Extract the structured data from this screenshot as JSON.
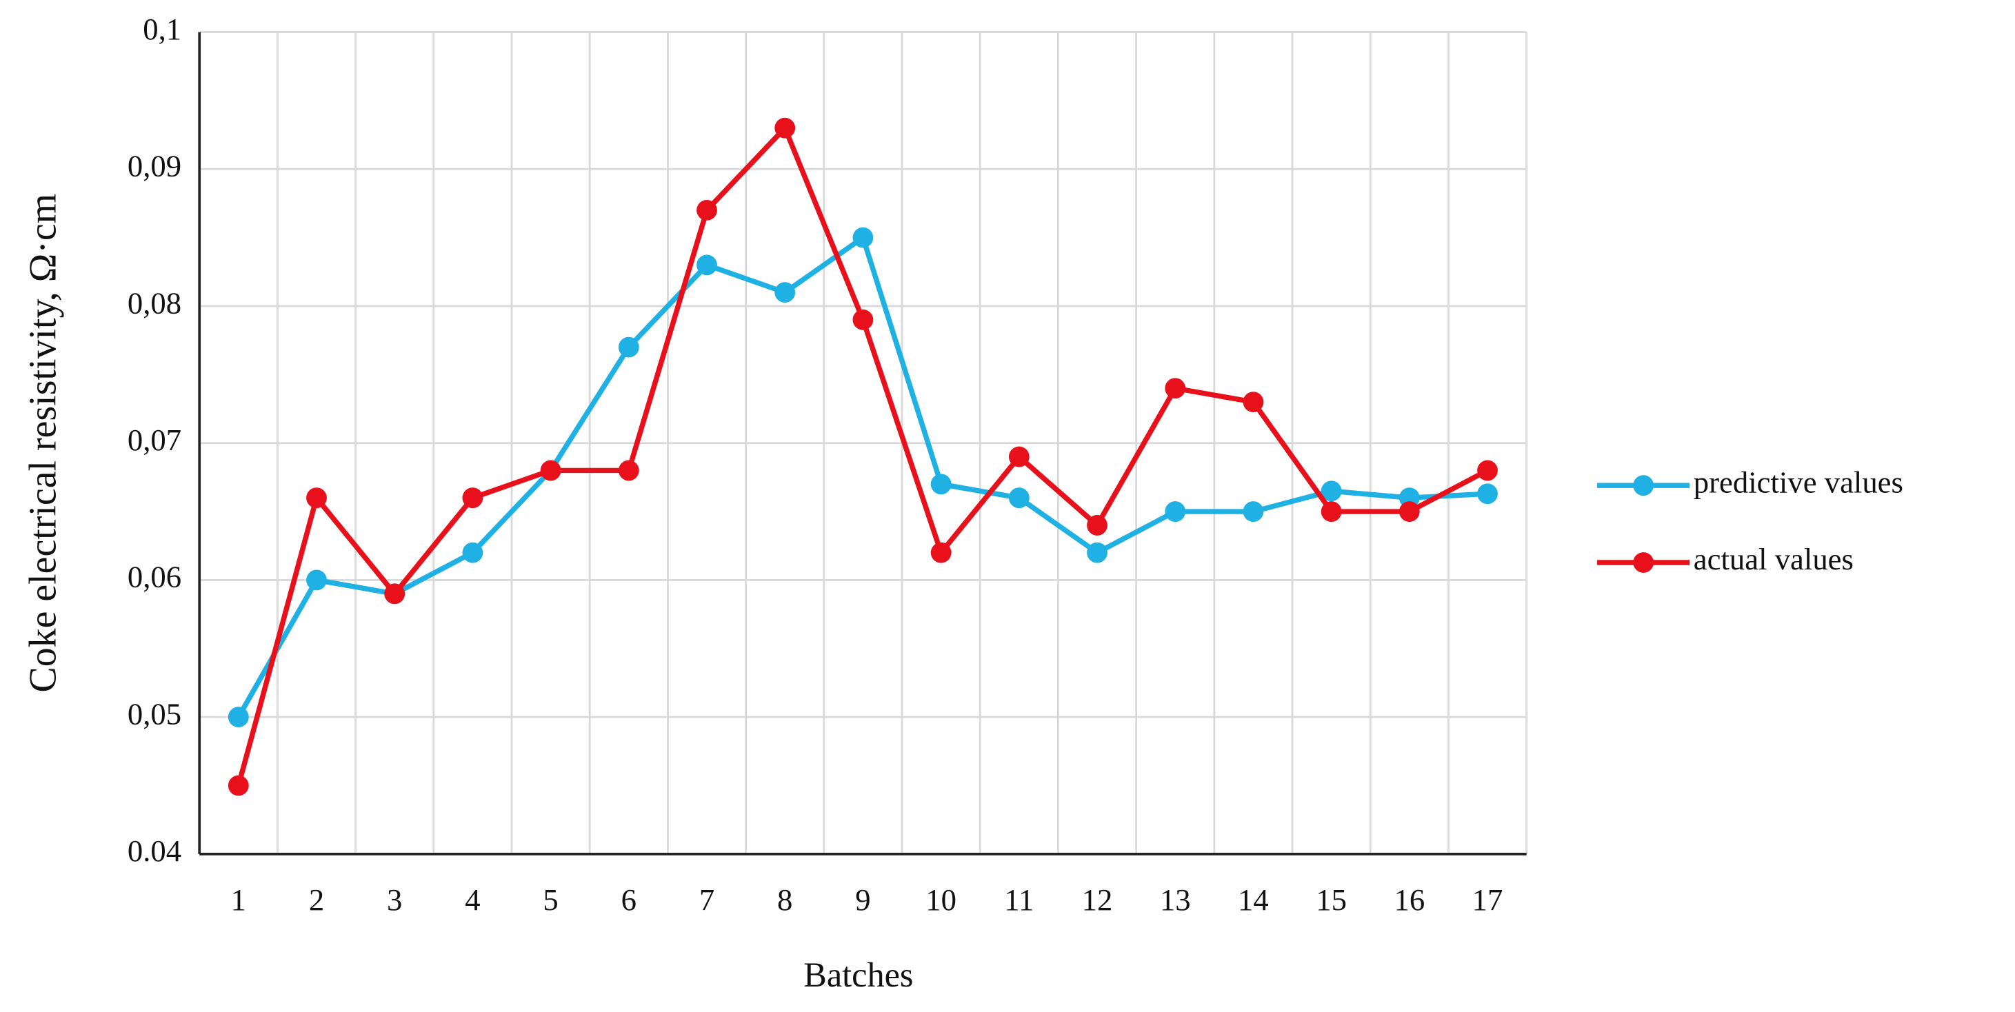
{
  "chart_data": {
    "type": "line",
    "x_label": "Batches",
    "y_label": "Coke electrical  resistivity,  Ω·cm",
    "categories": [
      "1",
      "2",
      "3",
      "4",
      "5",
      "6",
      "7",
      "8",
      "9",
      "10",
      "11",
      "12",
      "13",
      "14",
      "15",
      "16",
      "17"
    ],
    "series": [
      {
        "name": "predictive  values",
        "color": "#1fb0e4",
        "values": [
          0.05,
          0.06,
          0.059,
          0.062,
          0.068,
          0.077,
          0.083,
          0.081,
          0.085,
          0.067,
          0.066,
          0.062,
          0.065,
          0.065,
          0.0665,
          0.066,
          0.0663
        ]
      },
      {
        "name": "actual values",
        "color": "#e8101a",
        "values": [
          0.045,
          0.066,
          0.059,
          0.066,
          0.068,
          0.068,
          0.087,
          0.093,
          0.079,
          0.062,
          0.069,
          0.064,
          0.074,
          0.073,
          0.065,
          0.065,
          0.068
        ]
      }
    ],
    "ylim": [
      0.04,
      0.1
    ],
    "yticks": [
      {
        "value": 0.04,
        "label": "0.04"
      },
      {
        "value": 0.05,
        "label": "0,05"
      },
      {
        "value": 0.06,
        "label": "0,06"
      },
      {
        "value": 0.07,
        "label": "0,07"
      },
      {
        "value": 0.08,
        "label": "0,08"
      },
      {
        "value": 0.09,
        "label": "0,09"
      },
      {
        "value": 0.1,
        "label": "0,1"
      }
    ],
    "grid": true,
    "legend": "right"
  }
}
